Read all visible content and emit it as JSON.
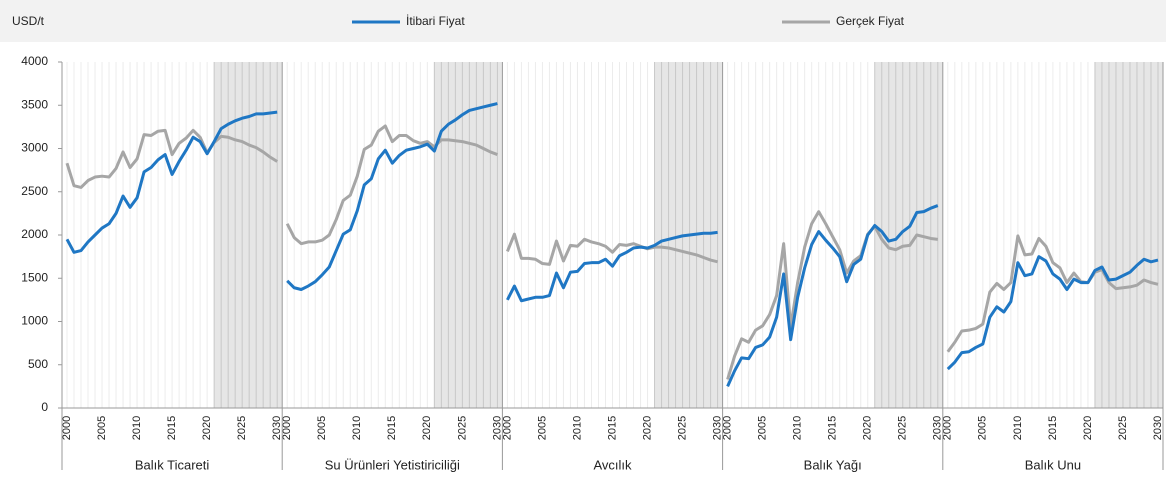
{
  "chart_data": {
    "type": "line",
    "y_label": "USD/t",
    "ylim": [
      0,
      4000
    ],
    "yticks": [
      0,
      500,
      1000,
      1500,
      2000,
      2500,
      3000,
      3500,
      4000
    ],
    "grid": true,
    "projection_range": [
      2021,
      2030
    ],
    "x": [
      2000,
      2001,
      2002,
      2003,
      2004,
      2005,
      2006,
      2007,
      2008,
      2009,
      2010,
      2011,
      2012,
      2013,
      2014,
      2015,
      2016,
      2017,
      2018,
      2019,
      2020,
      2021,
      2022,
      2023,
      2024,
      2025,
      2026,
      2027,
      2028,
      2029,
      2030
    ],
    "xlim": [
      2000,
      2030
    ],
    "xticks": [
      2000,
      2005,
      2010,
      2015,
      2020,
      2025,
      2030
    ],
    "series": [
      {
        "name": "İtibari Fiyat",
        "color": "#1f77c4"
      },
      {
        "name": "Gerçek Fiyat",
        "color": "#a6a6a6"
      }
    ],
    "panels": [
      {
        "name": "Balık Ticareti",
        "values": [
          [
            1950,
            1800,
            1820,
            1920,
            2000,
            2080,
            2130,
            2250,
            2450,
            2320,
            2430,
            2730,
            2780,
            2870,
            2930,
            2700,
            2850,
            2980,
            3130,
            3080,
            2940,
            3080,
            3230,
            3280,
            3320,
            3350,
            3370,
            3400,
            3400,
            3410,
            3420
          ],
          [
            2830,
            2570,
            2550,
            2630,
            2670,
            2680,
            2670,
            2770,
            2960,
            2780,
            2880,
            3160,
            3150,
            3200,
            3210,
            2930,
            3060,
            3120,
            3210,
            3130,
            2950,
            3070,
            3140,
            3130,
            3100,
            3080,
            3040,
            3010,
            2960,
            2900,
            2850
          ]
        ]
      },
      {
        "name": "Su Ürünleri Yetistiriciliği",
        "values": [
          [
            1470,
            1390,
            1370,
            1410,
            1460,
            1540,
            1630,
            1820,
            2010,
            2060,
            2280,
            2580,
            2650,
            2880,
            2980,
            2830,
            2920,
            2980,
            3000,
            3020,
            3050,
            2970,
            3200,
            3280,
            3330,
            3390,
            3440,
            3460,
            3480,
            3500,
            3520
          ],
          [
            2130,
            1970,
            1900,
            1920,
            1920,
            1940,
            2000,
            2180,
            2400,
            2460,
            2680,
            2990,
            3040,
            3200,
            3260,
            3080,
            3150,
            3150,
            3090,
            3060,
            3080,
            3020,
            3100,
            3100,
            3090,
            3080,
            3060,
            3040,
            3000,
            2960,
            2930
          ]
        ]
      },
      {
        "name": "Avcılık",
        "values": [
          [
            1250,
            1410,
            1240,
            1260,
            1280,
            1280,
            1300,
            1560,
            1390,
            1570,
            1580,
            1670,
            1680,
            1680,
            1720,
            1640,
            1760,
            1800,
            1850,
            1860,
            1850,
            1880,
            1930,
            1950,
            1970,
            1990,
            2000,
            2010,
            2020,
            2020,
            2030
          ],
          [
            1810,
            2010,
            1730,
            1730,
            1720,
            1670,
            1660,
            1930,
            1700,
            1880,
            1870,
            1950,
            1920,
            1900,
            1870,
            1800,
            1890,
            1880,
            1900,
            1870,
            1840,
            1860,
            1860,
            1850,
            1830,
            1810,
            1790,
            1770,
            1740,
            1710,
            1690
          ]
        ]
      },
      {
        "name": "Balık Yağı",
        "values": [
          [
            250,
            430,
            580,
            570,
            700,
            730,
            820,
            1050,
            1550,
            790,
            1280,
            1620,
            1890,
            2040,
            1940,
            1850,
            1750,
            1460,
            1660,
            1720,
            2000,
            2110,
            2040,
            1930,
            1950,
            2040,
            2100,
            2260,
            2270,
            2310,
            2340
          ],
          [
            330,
            600,
            800,
            760,
            900,
            950,
            1080,
            1300,
            1900,
            940,
            1450,
            1860,
            2130,
            2270,
            2130,
            1980,
            1830,
            1560,
            1700,
            1760,
            2010,
            2100,
            1950,
            1850,
            1830,
            1870,
            1880,
            2000,
            1980,
            1960,
            1950
          ]
        ]
      },
      {
        "name": "Balık Unu",
        "values": [
          [
            450,
            530,
            640,
            650,
            700,
            740,
            1050,
            1170,
            1110,
            1230,
            1680,
            1530,
            1550,
            1750,
            1700,
            1550,
            1490,
            1370,
            1490,
            1450,
            1450,
            1590,
            1630,
            1480,
            1490,
            1530,
            1570,
            1650,
            1720,
            1690,
            1710
          ],
          [
            650,
            760,
            890,
            900,
            920,
            970,
            1340,
            1440,
            1370,
            1450,
            1990,
            1770,
            1780,
            1960,
            1870,
            1680,
            1620,
            1450,
            1560,
            1460,
            1450,
            1570,
            1600,
            1450,
            1380,
            1390,
            1400,
            1420,
            1480,
            1450,
            1430
          ]
        ]
      }
    ]
  }
}
